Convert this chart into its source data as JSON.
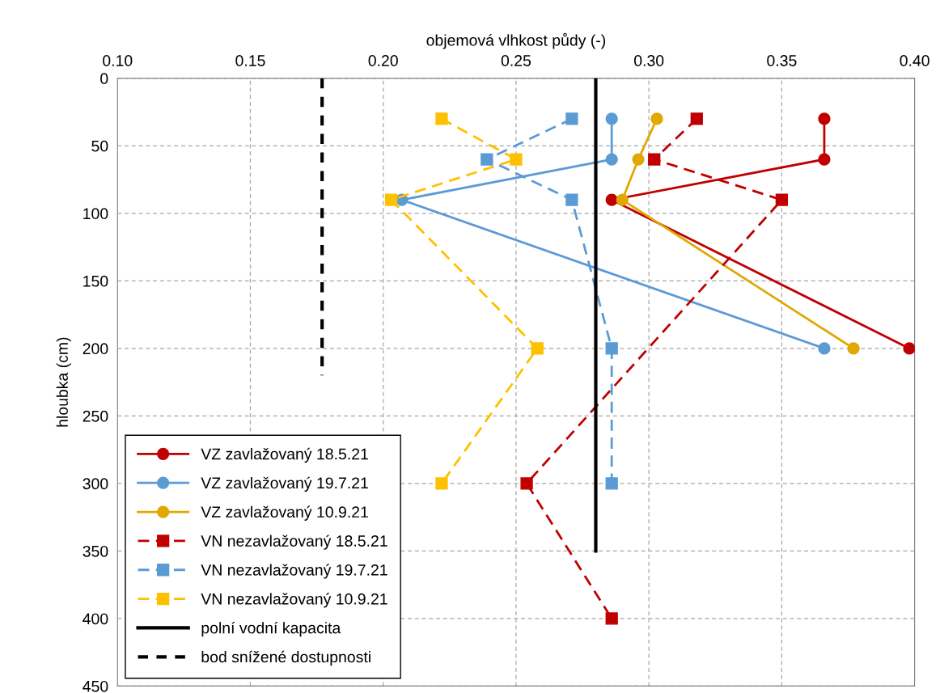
{
  "chart_data": {
    "type": "line",
    "xlabel": "objemová vlhkost půdy (-)",
    "ylabel": "hloubka (cm)",
    "xlim": [
      0.1,
      0.4
    ],
    "xticks": [
      {
        "value": 0.1,
        "label": "0.10"
      },
      {
        "value": 0.15,
        "label": "0.15"
      },
      {
        "value": 0.2,
        "label": "0.20"
      },
      {
        "value": 0.25,
        "label": "0.25"
      },
      {
        "value": 0.3,
        "label": "0.30"
      },
      {
        "value": 0.35,
        "label": "0.35"
      },
      {
        "value": 0.4,
        "label": "0.40"
      }
    ],
    "ylim": [
      450,
      0
    ],
    "yticks": [
      0,
      50,
      100,
      150,
      200,
      250,
      300,
      350,
      400,
      450
    ],
    "grid": true,
    "legend": "bottom left",
    "series": [
      {
        "name": "VZ zavlažovaný 18.5.21",
        "color": "#c00000",
        "marker": "circle",
        "line_style": "solid",
        "x": [
          0.366,
          0.366,
          0.286,
          0.398
        ],
        "values": [
          30,
          60,
          90,
          200
        ]
      },
      {
        "name": "VZ zavlažovaný 19.7.21",
        "color": "#5b9bd5",
        "marker": "circle",
        "line_style": "solid",
        "x": [
          0.286,
          0.286,
          0.207,
          0.366
        ],
        "values": [
          30,
          60,
          90,
          200
        ]
      },
      {
        "name": "VZ zavlažovaný 10.9.21",
        "color": "#e0a800",
        "marker": "circle",
        "line_style": "solid",
        "x": [
          0.303,
          0.296,
          0.29,
          0.377
        ],
        "values": [
          30,
          60,
          90,
          200
        ]
      },
      {
        "name": "VN nezavlažovaný 18.5.21",
        "color": "#c00000",
        "marker": "square",
        "line_style": "dashed",
        "x": [
          0.318,
          0.302,
          0.35,
          0.254,
          0.286
        ],
        "values": [
          30,
          60,
          90,
          300,
          400
        ]
      },
      {
        "name": "VN nezavlažovaný 19.7.21",
        "color": "#5b9bd5",
        "marker": "square",
        "line_style": "dashed",
        "x": [
          0.271,
          0.239,
          0.271,
          0.286,
          0.286
        ],
        "values": [
          30,
          60,
          90,
          200,
          300
        ]
      },
      {
        "name": "VN nezavlažovaný 10.9.21",
        "color": "#ffc000",
        "marker": "square",
        "line_style": "dashed",
        "x": [
          0.222,
          0.25,
          0.203,
          0.258,
          0.222
        ],
        "values": [
          30,
          60,
          90,
          200,
          300
        ]
      },
      {
        "name": "polní vodní kapacita",
        "color": "#000000",
        "marker": "none",
        "line_style": "solid",
        "x": [
          0.28,
          0.28
        ],
        "values": [
          0,
          350
        ]
      },
      {
        "name": "bod snížené dostupnosti",
        "color": "#000000",
        "marker": "none",
        "line_style": "dashed",
        "x": [
          0.177,
          0.177
        ],
        "values": [
          0,
          220
        ]
      }
    ]
  }
}
